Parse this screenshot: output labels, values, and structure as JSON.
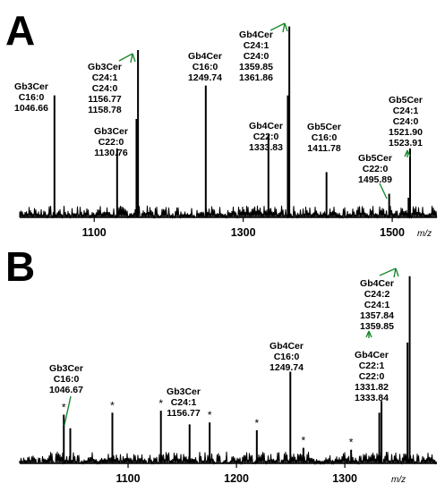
{
  "chart_data": [
    {
      "panel": "A",
      "type": "line",
      "xlabel": "m/z",
      "ylabel": "",
      "xlim": [
        1000,
        1560
      ],
      "xticks": [
        1100,
        1300,
        1500
      ],
      "peaks": [
        {
          "x": 1046.66,
          "h": 0.62
        },
        {
          "x": 1130.76,
          "h": 0.35
        },
        {
          "x": 1156.77,
          "h": 0.5
        },
        {
          "x": 1158.78,
          "h": 0.85
        },
        {
          "x": 1249.74,
          "h": 0.67
        },
        {
          "x": 1333.83,
          "h": 0.42
        },
        {
          "x": 1359.85,
          "h": 0.62
        },
        {
          "x": 1361.86,
          "h": 0.97
        },
        {
          "x": 1411.78,
          "h": 0.23
        },
        {
          "x": 1495.89,
          "h": 0.12
        },
        {
          "x": 1521.9,
          "h": 0.1
        },
        {
          "x": 1523.91,
          "h": 0.35
        }
      ],
      "annotations": [
        {
          "lines": [
            "Gb3Cer",
            "C16:0",
            "1046.66"
          ]
        },
        {
          "lines": [
            "Gb3Cer",
            "C24:1",
            "C24:0",
            "1156.77",
            "1158.78"
          ]
        },
        {
          "lines": [
            "Gb3Cer",
            "C22:0",
            "1130.76"
          ]
        },
        {
          "lines": [
            "Gb4Cer",
            "C16:0",
            "1249.74"
          ]
        },
        {
          "lines": [
            "Gb4Cer",
            "C24:1",
            "C24:0",
            "1359.85",
            "1361.86"
          ]
        },
        {
          "lines": [
            "Gb4Cer",
            "C22:0",
            "1333.83"
          ]
        },
        {
          "lines": [
            "Gb5Cer",
            "C16:0",
            "1411.78"
          ]
        },
        {
          "lines": [
            "Gb5Cer",
            "C22:0",
            "1495.89"
          ]
        },
        {
          "lines": [
            "Gb5Cer",
            "C24:1",
            "C24:0",
            "1521.90",
            "1523.91"
          ]
        }
      ]
    },
    {
      "panel": "B",
      "type": "line",
      "xlabel": "m/z",
      "ylabel": "",
      "xlim": [
        1000,
        1385
      ],
      "xticks": [
        1100,
        1200,
        1300
      ],
      "peaks": [
        {
          "x": 1040.7,
          "h": 0.25
        },
        {
          "x": 1046.67,
          "h": 0.18
        },
        {
          "x": 1085.5,
          "h": 0.26
        },
        {
          "x": 1130.3,
          "h": 0.27
        },
        {
          "x": 1156.77,
          "h": 0.2
        },
        {
          "x": 1175.3,
          "h": 0.21
        },
        {
          "x": 1218.8,
          "h": 0.17
        },
        {
          "x": 1249.74,
          "h": 0.47
        },
        {
          "x": 1261.8,
          "h": 0.08
        },
        {
          "x": 1305.8,
          "h": 0.07
        },
        {
          "x": 1331.82,
          "h": 0.26
        },
        {
          "x": 1333.84,
          "h": 0.32
        },
        {
          "x": 1357.84,
          "h": 0.62
        },
        {
          "x": 1359.85,
          "h": 0.96
        }
      ],
      "stars": [
        1040.7,
        1085.5,
        1130.3,
        1175.3,
        1218.8,
        1261.8,
        1305.8
      ],
      "annotations": [
        {
          "lines": [
            "Gb3Cer",
            "C16:0",
            "1046.67"
          ]
        },
        {
          "lines": [
            "Gb3Cer",
            "C24:1",
            "1156.77"
          ]
        },
        {
          "lines": [
            "Gb4Cer",
            "C16:0",
            "1249.74"
          ]
        },
        {
          "lines": [
            "Gb4Cer",
            "C22:1",
            "C22:0",
            "1331.82",
            "1333.84"
          ]
        },
        {
          "lines": [
            "Gb4Cer",
            "C24:2",
            "C24:1",
            "1357.84",
            "1359.85"
          ]
        }
      ]
    }
  ],
  "panel_letters": [
    "A",
    "B"
  ],
  "colors": {
    "arrow": "#1a8a2e",
    "trace": "#000000"
  }
}
